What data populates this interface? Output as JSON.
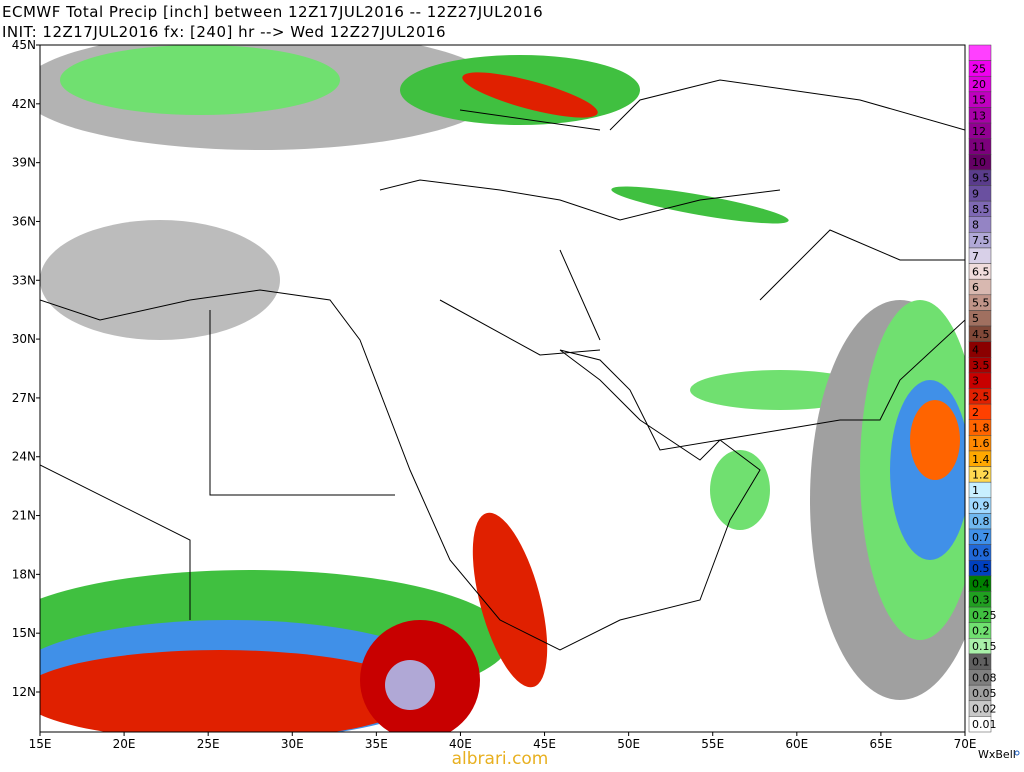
{
  "header": {
    "line1": "ECMWF Total Precip [inch] between 12Z17JUL2016 -- 12Z27JUL2016",
    "line2": "INIT: 12Z17JUL2016 fx: [240] hr --> Wed 12Z27JUL2016"
  },
  "latitude_labels": [
    "45N",
    "42N",
    "39N",
    "36N",
    "33N",
    "30N",
    "27N",
    "24N",
    "21N",
    "18N",
    "15N",
    "12N"
  ],
  "longitude_labels": [
    "15E",
    "20E",
    "25E",
    "30E",
    "35E",
    "40E",
    "45E",
    "50E",
    "55E",
    "60E",
    "65E",
    "70E"
  ],
  "colorbar": [
    {
      "label": "25",
      "color": "#f000f0"
    },
    {
      "label": "20",
      "color": "#dc00dc"
    },
    {
      "label": "15",
      "color": "#c000c0"
    },
    {
      "label": "13",
      "color": "#a800a8"
    },
    {
      "label": "12",
      "color": "#920092"
    },
    {
      "label": "11",
      "color": "#7c007c"
    },
    {
      "label": "10",
      "color": "#640064"
    },
    {
      "label": "9.5",
      "color": "#5a3c8c"
    },
    {
      "label": "9",
      "color": "#6a50a0"
    },
    {
      "label": "8.5",
      "color": "#7e68b4"
    },
    {
      "label": "8",
      "color": "#9484c4"
    },
    {
      "label": "7.5",
      "color": "#b0a8d6"
    },
    {
      "label": "7",
      "color": "#d8d0e8"
    },
    {
      "label": "6.5",
      "color": "#f0dcdc"
    },
    {
      "label": "6",
      "color": "#d8b8b0"
    },
    {
      "label": "5.5",
      "color": "#c09488"
    },
    {
      "label": "5",
      "color": "#a07060"
    },
    {
      "label": "4.5",
      "color": "#804838"
    },
    {
      "label": "4",
      "color": "#8b0000"
    },
    {
      "label": "3.5",
      "color": "#a80000"
    },
    {
      "label": "3",
      "color": "#c80000"
    },
    {
      "label": "2.5",
      "color": "#e02000"
    },
    {
      "label": "2",
      "color": "#ff4000"
    },
    {
      "label": "1.8",
      "color": "#ff6400"
    },
    {
      "label": "1.6",
      "color": "#ff8800"
    },
    {
      "label": "1.4",
      "color": "#ffa800"
    },
    {
      "label": "1.2",
      "color": "#ffd850"
    },
    {
      "label": "1",
      "color": "#c8f0ff"
    },
    {
      "label": "0.9",
      "color": "#a0d8ff"
    },
    {
      "label": "0.8",
      "color": "#70b8f0"
    },
    {
      "label": "0.7",
      "color": "#4090e8"
    },
    {
      "label": "0.6",
      "color": "#2068d8"
    },
    {
      "label": "0.5",
      "color": "#0040c0"
    },
    {
      "label": "0.4",
      "color": "#008000"
    },
    {
      "label": "0.3",
      "color": "#20a020"
    },
    {
      "label": "0.25",
      "color": "#40c040"
    },
    {
      "label": "0.2",
      "color": "#70e070"
    },
    {
      "label": "0.15",
      "color": "#a8f0a8"
    },
    {
      "label": "0.1",
      "color": "#606060"
    },
    {
      "label": "0.08",
      "color": "#808080"
    },
    {
      "label": "0.05",
      "color": "#a0a0a0"
    },
    {
      "label": "0.02",
      "color": "#c8c8c8"
    },
    {
      "label": "0.01",
      "color": "#ffffff"
    }
  ],
  "watermark": "albrari.com",
  "credit": "WxBell"
}
